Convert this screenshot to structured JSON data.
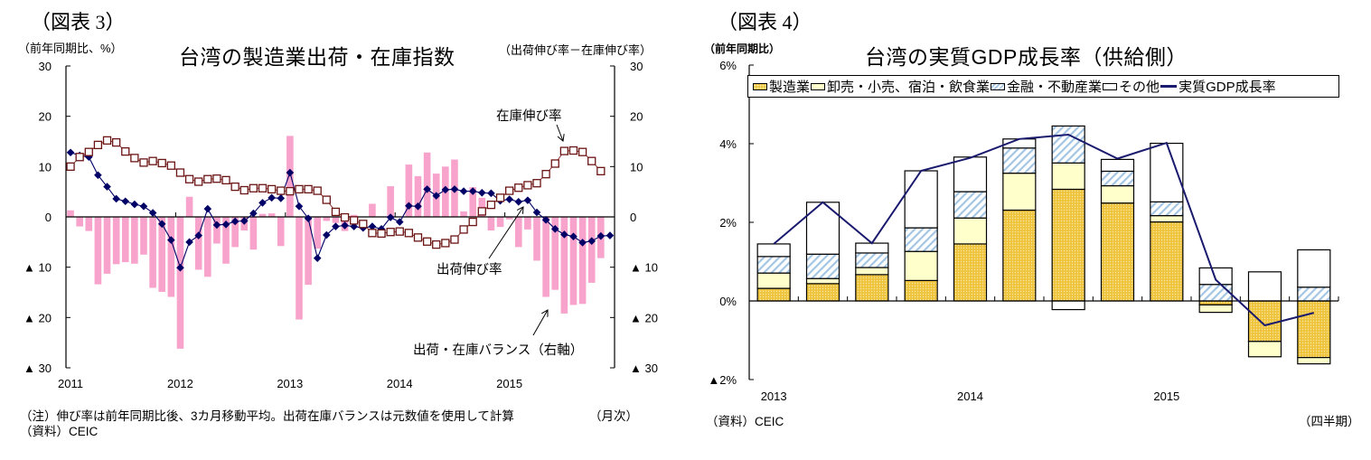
{
  "figures": [
    {
      "figure_label": "（図表 3）",
      "unit_left": "（前年同期比、%）",
      "title": "台湾の製造業出荷・在庫指数",
      "unit_right": "（出荷伸び率－在庫伸び率）",
      "note": "（注）伸び率は前年同期比後、3カ月移動平均。出荷在庫バランスは元数値を使用して計算",
      "frequency": "（月次）",
      "source": "（資料）CEIC",
      "annotations": {
        "inventory": "在庫伸び率",
        "shipment": "出荷伸び率",
        "balance": "出荷・在庫バランス（右軸）"
      }
    },
    {
      "figure_label": "（図表 4）",
      "unit_left": "（前年同期比）",
      "title": "台湾の実質GDP成長率（供給側）",
      "source": "（資料）CEIC",
      "frequency": "（四半期）",
      "legend": [
        "製造業",
        "卸売・小売、宿泊・飲食業",
        "金融・不動産業",
        "その他",
        "実質GDP成長率"
      ]
    }
  ],
  "chart_data": [
    {
      "type": "bar",
      "title": "台湾の製造業出荷・在庫指数",
      "x_start": "2011",
      "frequency": "monthly",
      "n_periods": 60,
      "x_tick_labels": [
        "2011",
        "2012",
        "2013",
        "2014",
        "2015"
      ],
      "xlabel": "（月次）",
      "ylabel_left": "（前年同期比、%）",
      "ylabel_right": "（出荷伸び率－在庫伸び率）",
      "ylim": [
        -30,
        30
      ],
      "y_ticks_left": [
        {
          "value": 30,
          "label": "30"
        },
        {
          "value": 20,
          "label": "20"
        },
        {
          "value": 10,
          "label": "10"
        },
        {
          "value": 0,
          "label": "0"
        },
        {
          "value": -10,
          "label": "▲ 10"
        },
        {
          "value": -20,
          "label": "▲ 20"
        },
        {
          "value": -30,
          "label": "▲ 30"
        }
      ],
      "y_ticks_right": [
        {
          "value": 30,
          "label": "30"
        },
        {
          "value": 20,
          "label": "20"
        },
        {
          "value": 10,
          "label": "10"
        },
        {
          "value": 0,
          "label": "0"
        },
        {
          "value": -10,
          "label": "▲ 10"
        },
        {
          "value": -20,
          "label": "▲ 20"
        },
        {
          "value": -30,
          "label": "▲ 30"
        }
      ],
      "grid": false,
      "series": [
        {
          "name": "出荷・在庫バランス（右軸）",
          "type": "bar",
          "axis": "right",
          "color": "#f7a3cb",
          "values": [
            1.3,
            -1.9,
            -2.8,
            -13.4,
            -11.3,
            -9.4,
            -9.0,
            -9.3,
            -7.5,
            -14.1,
            -14.9,
            -15.9,
            -26.2,
            4.0,
            -10.5,
            -11.9,
            -5.3,
            -9.3,
            -6.0,
            -2.7,
            -6.5,
            0.6,
            0.7,
            -5.8,
            16.1,
            -20.4,
            -13.5,
            -6.3,
            -0.8,
            -1.2,
            -2.8,
            0.4,
            0,
            2.6,
            0,
            6.1,
            0,
            10.4,
            8.1,
            12.8,
            8.6,
            10.0,
            11.4,
            1.1,
            5.9,
            3.8,
            -2.7,
            -2.0,
            -0.5,
            -6.0,
            -2.5,
            -8.7,
            -15.9,
            -14.5,
            -19.2,
            -17.5,
            -17.3,
            -13.1,
            -8.2,
            null
          ]
        },
        {
          "name": "出荷伸び率",
          "type": "line",
          "marker": "diamond",
          "axis": "left",
          "color": "#000066",
          "values": [
            12.8,
            12.2,
            11.9,
            8.3,
            6.0,
            3.6,
            3.1,
            2.5,
            2.1,
            0.8,
            -1.4,
            -4.6,
            -10.1,
            -5.0,
            -3.7,
            1.6,
            -1.6,
            -1.5,
            -0.9,
            -0.8,
            0.7,
            2.8,
            3.8,
            3.7,
            8.8,
            2.1,
            -0.3,
            -8.2,
            -3.6,
            -1.9,
            -1.7,
            -1.9,
            -2.2,
            -1.9,
            -2.4,
            -0.1,
            -1.0,
            2.2,
            2.1,
            5.5,
            4.2,
            5.4,
            5.5,
            5.1,
            5.1,
            4.8,
            4.7,
            3.2,
            3.5,
            3.0,
            3.3,
            0.9,
            -0.6,
            -2.4,
            -3.5,
            -3.9,
            -5.1,
            -4.8,
            -3.8,
            -3.7
          ]
        },
        {
          "name": "在庫伸び率",
          "type": "line",
          "marker": "square",
          "axis": "left",
          "color": "#6b1414",
          "values": [
            10.0,
            11.9,
            12.9,
            14.3,
            15.2,
            14.8,
            13.0,
            11.7,
            10.8,
            11.1,
            10.7,
            10.2,
            8.8,
            7.5,
            7.0,
            7.5,
            7.6,
            7.3,
            6.0,
            5.3,
            5.7,
            5.7,
            5.5,
            5.2,
            5.1,
            5.5,
            5.5,
            5.2,
            3.4,
            1.0,
            -0.1,
            -0.7,
            -1.4,
            -3.2,
            -3.3,
            -3.0,
            -2.9,
            -3.2,
            -4.1,
            -4.9,
            -5.5,
            -5.2,
            -4.5,
            -2.5,
            -1.0,
            1.1,
            2.4,
            3.8,
            5.2,
            5.8,
            6.3,
            6.7,
            8.5,
            10.6,
            13.1,
            13.2,
            12.9,
            11.1,
            9.1,
            null
          ]
        }
      ],
      "annotations": [
        "在庫伸び率",
        "出荷伸び率",
        "出荷・在庫バランス（右軸）"
      ]
    },
    {
      "type": "bar",
      "stacked": true,
      "title": "台湾の実質GDP成長率（供給側）",
      "categories": [
        "2013",
        "",
        "",
        "",
        "2014",
        "",
        "",
        "",
        "2015",
        "",
        "",
        ""
      ],
      "frequency": "quarterly",
      "xlabel": "（四半期）",
      "ylabel": "（前年同期比）",
      "ylim": [
        -2,
        6
      ],
      "y_ticks": [
        {
          "value": 6,
          "label": "6%"
        },
        {
          "value": 4,
          "label": "4%"
        },
        {
          "value": 2,
          "label": "2%"
        },
        {
          "value": 0,
          "label": "0%"
        },
        {
          "value": -2,
          "label": "▲2%"
        }
      ],
      "grid": false,
      "legend_position": "top",
      "series": [
        {
          "name": "製造業",
          "type": "bar",
          "color": "#efc43c",
          "pattern": "dots",
          "values": [
            0.32,
            0.44,
            0.67,
            0.52,
            1.45,
            2.31,
            2.84,
            2.49,
            2.01,
            -0.1,
            -1.03,
            -1.44
          ]
        },
        {
          "name": "卸売・小売、宿泊・飲食業",
          "type": "bar",
          "color": "#ffffcc",
          "pattern": "none",
          "values": [
            0.39,
            0.13,
            0.18,
            0.74,
            0.66,
            0.94,
            0.67,
            0.44,
            0.16,
            -0.19,
            -0.39,
            -0.16
          ]
        },
        {
          "name": "金融・不動産業",
          "type": "bar",
          "color": "#a4c6e4",
          "pattern": "hatch",
          "values": [
            0.42,
            0.62,
            0.37,
            0.6,
            0.67,
            0.64,
            0.94,
            0.37,
            0.35,
            0.42,
            0.0,
            0.35
          ]
        },
        {
          "name": "その他",
          "type": "bar",
          "color": "#ffffff",
          "pattern": "none",
          "values": [
            0.32,
            1.32,
            0.25,
            1.45,
            0.88,
            0.23,
            -0.22,
            0.3,
            1.49,
            0.42,
            0.74,
            0.95
          ]
        },
        {
          "name": "実質GDP成長率",
          "type": "line",
          "color": "#1a1a6e",
          "values": [
            1.45,
            2.51,
            1.47,
            3.31,
            3.64,
            4.12,
            4.23,
            3.62,
            4.02,
            0.54,
            -0.62,
            -0.3
          ]
        }
      ]
    }
  ]
}
